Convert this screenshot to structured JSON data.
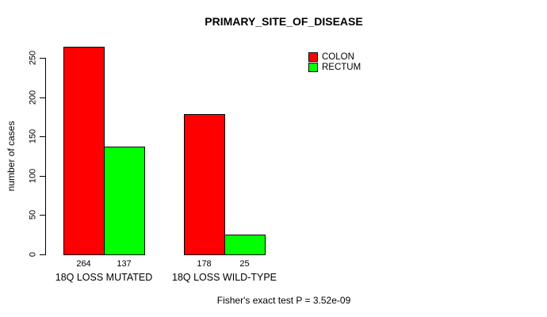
{
  "chart_data": {
    "type": "bar",
    "title": "PRIMARY_SITE_OF_DISEASE",
    "categories": [
      "18Q LOSS MUTATED",
      "18Q LOSS WILD-TYPE"
    ],
    "series": [
      {
        "name": "COLON",
        "color": "#FF0000",
        "values": [
          264,
          178
        ]
      },
      {
        "name": "RECTUM",
        "color": "#00FF00",
        "values": [
          137,
          25
        ]
      }
    ],
    "ylabel": "number of cases",
    "xlabel": "",
    "yticks": [
      0,
      50,
      100,
      150,
      200,
      250
    ],
    "ylim": [
      0,
      250
    ],
    "grid": false,
    "legend_position": "top-right",
    "value_labels_under_bars": true,
    "bar_border_color": "#000000",
    "background_color": "#FFFFFF",
    "text_color": "#000000",
    "annotation": "Fisher's exact test P = 3.52e-09"
  }
}
